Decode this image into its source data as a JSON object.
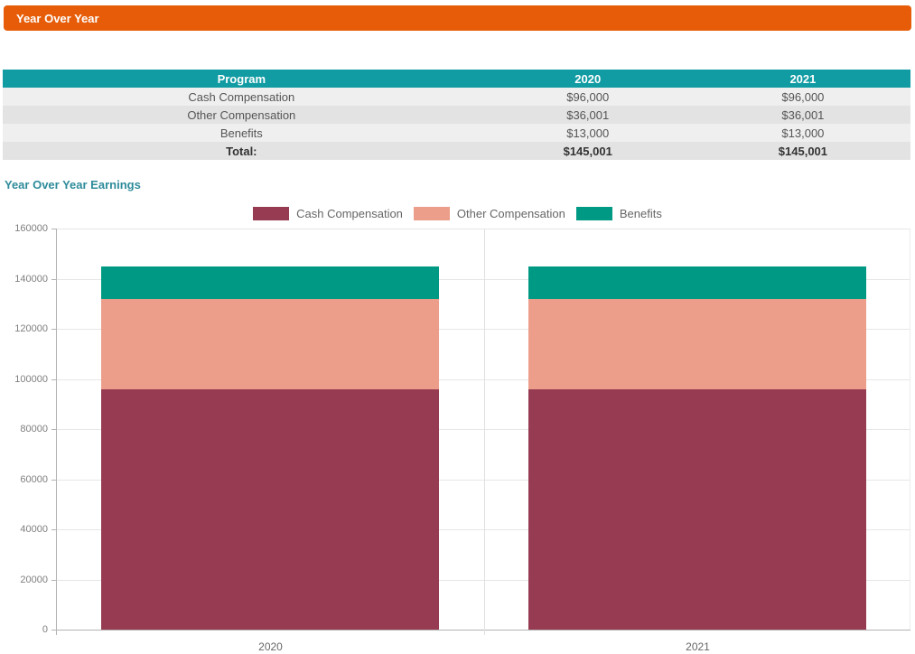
{
  "header": {
    "title": "Year Over Year",
    "bg_color": "#e65c08"
  },
  "table": {
    "header_bg": "#119ba3",
    "columns": [
      "Program",
      "2020",
      "2021"
    ],
    "rows": [
      {
        "program": "Cash Compensation",
        "y2020": "$96,000",
        "y2021": "$96,000"
      },
      {
        "program": "Other Compensation",
        "y2020": "$36,001",
        "y2021": "$36,001"
      },
      {
        "program": "Benefits",
        "y2020": "$13,000",
        "y2021": "$13,000"
      }
    ],
    "total": {
      "program": "Total:",
      "y2020": "$145,001",
      "y2021": "$145,001"
    }
  },
  "section": {
    "title": "Year Over Year Earnings",
    "color": "#2e8b9a"
  },
  "chart_data": {
    "type": "bar",
    "stacked": true,
    "title": "Year Over Year Earnings",
    "categories": [
      "2020",
      "2021"
    ],
    "series": [
      {
        "name": "Cash Compensation",
        "color": "#963b51",
        "values": [
          96000,
          96000
        ]
      },
      {
        "name": "Other Compensation",
        "color": "#ec9e8a",
        "values": [
          36001,
          36001
        ]
      },
      {
        "name": "Benefits",
        "color": "#009a84",
        "values": [
          13000,
          13000
        ]
      }
    ],
    "ylim": [
      0,
      160000
    ],
    "ytick_step": 20000,
    "yticks": [
      0,
      20000,
      40000,
      60000,
      80000,
      100000,
      120000,
      140000,
      160000
    ],
    "grid": true,
    "legend_position": "top"
  }
}
